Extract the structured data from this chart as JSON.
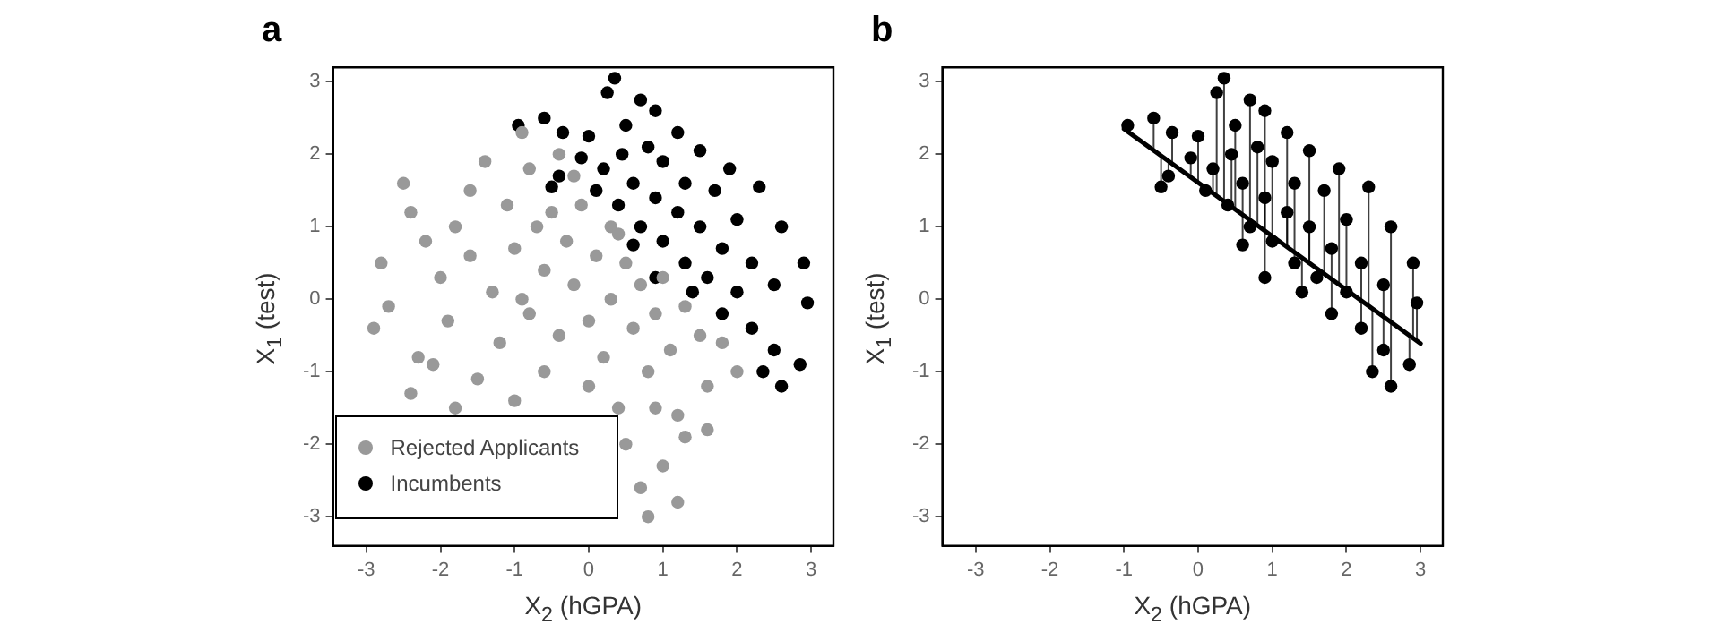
{
  "chart_data": [
    {
      "type": "scatter",
      "title": "a",
      "xlabel": "X$_{2}$ (hGPA)",
      "ylabel": "X$_{1}$ (test)",
      "xlim": [
        -3.45,
        3.3
      ],
      "ylim": [
        -3.4,
        3.2
      ],
      "xticks": [
        -3,
        -2,
        -1,
        0,
        1,
        2,
        3
      ],
      "yticks": [
        -3,
        -2,
        -1,
        0,
        1,
        2,
        3
      ],
      "grid": false,
      "legend": "bottom left",
      "marker": "circle",
      "series": [
        {
          "name": "Rejected Applicants",
          "color": "#999999",
          "x": [
            -2.9,
            -2.7,
            -2.5,
            -2.4,
            -2.2,
            -2.3,
            -2.0,
            -1.9,
            -1.8,
            -1.6,
            -1.5,
            -1.4,
            -1.3,
            -1.2,
            -1.1,
            -1.0,
            -1.0,
            -0.9,
            -0.8,
            -0.7,
            -0.6,
            -0.6,
            -0.5,
            -0.4,
            -0.3,
            -0.2,
            -0.1,
            0.0,
            0.0,
            0.1,
            0.2,
            0.3,
            0.3,
            0.4,
            0.5,
            0.6,
            0.7,
            0.8,
            0.9,
            1.0,
            1.1,
            1.2,
            1.3,
            1.5,
            1.6,
            1.8,
            2.0,
            0.7,
            0.8,
            1.2,
            0.5,
            1.0,
            1.3,
            -1.8,
            -2.4,
            -0.9,
            -1.6,
            -0.2,
            -0.4,
            0.9,
            1.6,
            -2.8,
            -2.1,
            0.4,
            -0.8
          ],
          "values": [
            -0.4,
            -0.1,
            1.6,
            1.2,
            0.8,
            -0.8,
            0.3,
            -0.3,
            1.0,
            0.6,
            -1.1,
            1.9,
            0.1,
            -0.6,
            1.3,
            0.7,
            -1.4,
            2.3,
            -0.2,
            1.0,
            0.4,
            -1.0,
            1.2,
            -0.5,
            0.8,
            0.2,
            1.3,
            -0.3,
            -1.2,
            0.6,
            -0.8,
            1.0,
            0.0,
            -1.5,
            0.5,
            -0.4,
            0.2,
            -1.0,
            -0.2,
            0.3,
            -0.7,
            -1.6,
            -0.1,
            -0.5,
            -1.2,
            -0.6,
            -1.0,
            -2.6,
            -3.0,
            -2.8,
            -2.0,
            -2.3,
            -1.9,
            -1.5,
            -1.3,
            0.0,
            1.5,
            1.7,
            2.0,
            -1.5,
            -1.8,
            0.5,
            -0.9,
            0.9,
            1.8
          ]
        },
        {
          "name": "Incumbents",
          "color": "#000000",
          "x": [
            0.35,
            0.25,
            0.7,
            -0.6,
            -0.95,
            0.9,
            0.5,
            0.0,
            -0.35,
            1.2,
            0.8,
            -0.1,
            0.2,
            0.45,
            1.5,
            1.0,
            1.9,
            0.6,
            1.3,
            -0.4,
            -0.5,
            0.1,
            0.9,
            1.7,
            2.3,
            0.4,
            1.2,
            0.7,
            1.5,
            2.0,
            2.6,
            1.0,
            1.8,
            0.6,
            1.3,
            2.2,
            2.9,
            1.6,
            2.0,
            2.5,
            2.95,
            1.8,
            2.2,
            2.5,
            2.35,
            2.85,
            2.6,
            1.4,
            0.9
          ],
          "values": [
            3.05,
            2.85,
            2.75,
            2.5,
            2.4,
            2.6,
            2.4,
            2.25,
            2.3,
            2.3,
            2.1,
            1.95,
            1.8,
            2.0,
            2.05,
            1.9,
            1.8,
            1.6,
            1.6,
            1.7,
            1.55,
            1.5,
            1.4,
            1.5,
            1.55,
            1.3,
            1.2,
            1.0,
            1.0,
            1.1,
            1.0,
            0.8,
            0.7,
            0.75,
            0.5,
            0.5,
            0.5,
            0.3,
            0.1,
            0.2,
            -0.05,
            -0.2,
            -0.4,
            -0.7,
            -1.0,
            -0.9,
            -1.2,
            0.1,
            0.3
          ]
        }
      ]
    },
    {
      "type": "scatter",
      "title": "b",
      "xlabel": "X$_{2}$ (hGPA)",
      "ylabel": "X$_{1}$ (test)",
      "xlim": [
        -3.45,
        3.3
      ],
      "ylim": [
        -3.4,
        3.2
      ],
      "xticks": [
        -3,
        -2,
        -1,
        0,
        1,
        2,
        3
      ],
      "yticks": [
        -3,
        -2,
        -1,
        0,
        1,
        2,
        3
      ],
      "grid": false,
      "marker": "circle",
      "series": [
        {
          "color": "#000000",
          "x": [
            0.35,
            0.25,
            0.7,
            -0.6,
            -0.95,
            0.9,
            0.5,
            0.0,
            -0.35,
            1.2,
            0.8,
            -0.1,
            0.2,
            0.45,
            1.5,
            1.0,
            1.9,
            0.6,
            1.3,
            -0.4,
            -0.5,
            0.1,
            0.9,
            1.7,
            2.3,
            0.4,
            1.2,
            0.7,
            1.5,
            2.0,
            2.6,
            1.0,
            1.8,
            0.6,
            1.3,
            2.2,
            2.9,
            1.6,
            2.0,
            2.5,
            2.95,
            1.8,
            2.2,
            2.5,
            2.35,
            2.85,
            2.6,
            1.4,
            0.9
          ],
          "values": [
            3.05,
            2.85,
            2.75,
            2.5,
            2.4,
            2.6,
            2.4,
            2.25,
            2.3,
            2.3,
            2.1,
            1.95,
            1.8,
            2.0,
            2.05,
            1.9,
            1.8,
            1.6,
            1.6,
            1.7,
            1.55,
            1.5,
            1.4,
            1.5,
            1.55,
            1.3,
            1.2,
            1.0,
            1.0,
            1.1,
            1.0,
            0.8,
            0.7,
            0.75,
            0.5,
            0.5,
            0.5,
            0.3,
            0.1,
            0.2,
            -0.05,
            -0.2,
            -0.4,
            -0.7,
            -1.0,
            -0.9,
            -1.2,
            0.1,
            0.3
          ],
          "errors": [
            [
              1.35,
              3.05
            ],
            [
              1.43,
              2.85
            ],
            [
              1.09,
              2.75
            ],
            [
              2.05,
              2.5
            ],
            [
              2.31,
              2.4
            ],
            [
              0.94,
              2.6
            ],
            [
              1.24,
              2.4
            ],
            [
              1.61,
              2.25
            ],
            [
              1.87,
              2.3
            ],
            [
              0.72,
              2.3
            ],
            [
              1.02,
              2.1
            ],
            [
              1.68,
              1.95
            ],
            [
              1.46,
              1.8
            ],
            [
              1.28,
              2.0
            ],
            [
              0.5,
              2.05
            ],
            [
              0.87,
              1.9
            ],
            [
              0.2,
              1.8
            ],
            [
              1.17,
              1.6
            ],
            [
              0.65,
              1.6
            ],
            [
              1.7,
              1.91
            ],
            [
              1.55,
              1.98
            ],
            [
              1.5,
              1.54
            ],
            [
              0.94,
              1.4
            ],
            [
              0.35,
              1.5
            ],
            [
              -0.09,
              1.55
            ],
            [
              1.3,
              1.31
            ],
            [
              0.72,
              1.2
            ],
            [
              1.0,
              1.09
            ],
            [
              0.5,
              1.0
            ],
            [
              0.13,
              1.1
            ],
            [
              -0.31,
              1.0
            ],
            [
              0.8,
              0.87
            ],
            [
              0.28,
              0.7
            ],
            [
              0.75,
              1.17
            ],
            [
              0.5,
              0.65
            ],
            [
              -0.02,
              0.5
            ],
            [
              -0.54,
              0.5
            ],
            [
              0.3,
              0.43
            ],
            [
              0.1,
              0.13
            ],
            [
              -0.24,
              0.2
            ],
            [
              -0.57,
              -0.05
            ],
            [
              -0.2,
              0.28
            ],
            [
              -0.4,
              -0.02
            ],
            [
              -0.7,
              -0.24
            ],
            [
              -1.0,
              -0.13
            ],
            [
              -0.9,
              -0.5
            ],
            [
              -1.2,
              -0.31
            ],
            [
              0.1,
              0.57
            ],
            [
              0.3,
              0.94
            ]
          ]
        },
        {
          "type": "line",
          "marker": "none",
          "color": "#000000",
          "x": [
            -1,
            3
          ],
          "values": [
            2.35,
            -0.61
          ]
        }
      ]
    }
  ]
}
